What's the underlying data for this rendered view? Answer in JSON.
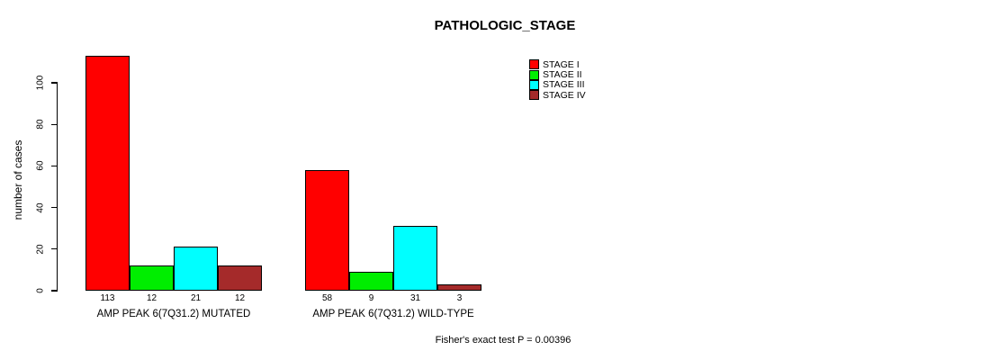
{
  "chart_data": {
    "type": "bar",
    "title": "PATHOLOGIC_STAGE",
    "ylabel": "number of cases",
    "xlabel": "",
    "ylim": [
      0,
      113
    ],
    "yticks": [
      0,
      20,
      40,
      60,
      80,
      100
    ],
    "grid": false,
    "legend_position": "top-right",
    "categories": [
      "AMP PEAK 6(7Q31.2) MUTATED",
      "AMP PEAK 6(7Q31.2) WILD-TYPE"
    ],
    "series": [
      {
        "name": "STAGE I",
        "color": "#FF0000",
        "values": [
          113,
          58
        ]
      },
      {
        "name": "STAGE II",
        "color": "#00EE00",
        "values": [
          12,
          9
        ]
      },
      {
        "name": "STAGE III",
        "color": "#00FFFF",
        "values": [
          21,
          31
        ]
      },
      {
        "name": "STAGE IV",
        "color": "#A52A2A",
        "values": [
          12,
          3
        ]
      }
    ],
    "footer": "Fisher's exact test P = 0.00396"
  }
}
